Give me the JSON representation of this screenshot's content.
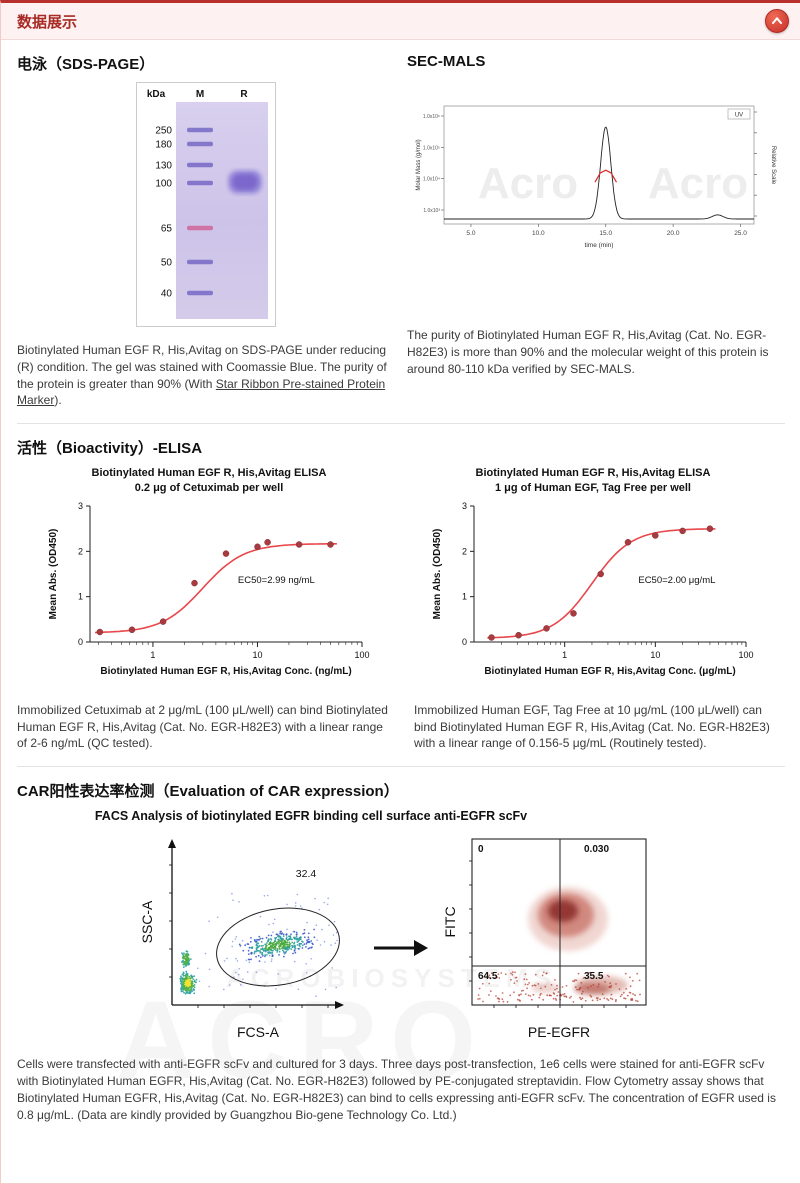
{
  "header": {
    "title": "数据展示"
  },
  "colors": {
    "accent_red": "#c13530",
    "header_bg": "#fdf1f1",
    "gel_purple": "#cdc3e9",
    "curve_red": "#e8474b"
  },
  "sections": {
    "sds_page": {
      "title": "电泳（SDS-PAGE）",
      "gel": {
        "header": {
          "kda": "kDa",
          "lane_m": "M",
          "lane_r": "R"
        },
        "marker_labels": [
          "250",
          "180",
          "130",
          "100",
          "65",
          "50",
          "40"
        ]
      },
      "caption_parts": {
        "before": "Biotinylated Human EGF R, His,Avitag on SDS-PAGE under reducing (R) condition. The gel was stained with Coomassie Blue. The purity of the protein is greater than 90% (With ",
        "underlined": "Star Ribbon Pre-stained Protein Marker",
        "after": ")."
      }
    },
    "sec_mals": {
      "title": "SEC-MALS",
      "caption": "The purity of Biotinylated Human EGF R, His,Avitag (Cat. No. EGR-H82E3) is more than 90% and the molecular weight of this protein is around 80-110 kDa verified by SEC-MALS."
    },
    "elisa": {
      "title": "活性（Bioactivity）-ELISA",
      "captions": [
        "Immobilized Cetuximab at 2 μg/mL (100 μL/well) can bind Biotinylated Human EGF R, His,Avitag (Cat. No. EGR-H82E3) with a linear range of 2-6 ng/mL (QC tested).",
        "Immobilized Human EGF, Tag Free at 10 μg/mL (100 μL/well) can bind Biotinylated Human EGF R, His,Avitag (Cat. No. EGR-H82E3) with a linear range of 0.156-5 μg/mL (Routinely tested)."
      ]
    },
    "car": {
      "title": "CAR阳性表达率检测（Evaluation of CAR expression）",
      "subtitle": "FACS Analysis of biotinylated EGFR binding cell surface anti-EGFR scFv",
      "caption": "Cells were transfected with anti-EGFR scFv and cultured for 3 days. Three days post-transfection, 1e6 cells were stained for anti-EGFR scFv with Biotinylated Human EGFR, His,Avitag (Cat. No. EGR-H82E3) followed by PE-conjugated streptavidin. Flow Cytometry assay shows that Biotinylated Human EGFR, His,Avitag (Cat. No. EGR-H82E3) can bind to cells expressing anti-EGFR scFv. The concentration of EGFR used is 0.8 μg/mL. (Data are kindly provided by Guangzhou Bio-gene Technology Co. Ltd.)"
    }
  },
  "watermark": {
    "facs_small": "ACROBIOSYSTEMS",
    "facs_big": "ACRO"
  },
  "chart_data": [
    {
      "id": "sec_mals_trace",
      "type": "line",
      "xlabel": "time (min)",
      "ylabel_left": "Molar Mass (g/mol)",
      "ylabel_right": "Relative Scale",
      "xlim": [
        3.0,
        26.0
      ],
      "x_ticks": [
        "5.0",
        "10.0",
        "15.0",
        "20.0",
        "25.0"
      ],
      "y_ticks_left": [
        "1.0x10⁶",
        "1.0x10⁵",
        "1.0x10⁴",
        "1.0x10³"
      ],
      "legend": [
        "UV"
      ],
      "peak_time_min": 15.0,
      "peaks": [
        {
          "center": 15.0,
          "sigma": 0.38,
          "amp": 1.0
        },
        {
          "center": 23.3,
          "sigma": 0.4,
          "amp": 0.045
        }
      ],
      "molar_mass_trace": [
        [
          14.2,
          0.4
        ],
        [
          14.6,
          0.5
        ],
        [
          15.0,
          0.53
        ],
        [
          15.4,
          0.5
        ],
        [
          15.8,
          0.4
        ]
      ],
      "watermark": "Acro"
    },
    {
      "id": "elisa_cetuximab",
      "type": "scatter_line",
      "title": "Biotinylated Human EGF R, His,Avitag ELISA",
      "subtitle": "0.2 μg of Cetuximab per well",
      "xlabel": "Biotinylated Human EGF R, His,Avitag Conc. (ng/mL)",
      "ylabel": "Mean Abs. (OD450)",
      "ec50_label": "EC50=2.99 ng/mL",
      "xscale": "log",
      "xlim": [
        0.25,
        100
      ],
      "ylim": [
        0,
        3
      ],
      "yticks": [
        0,
        1,
        2,
        3
      ],
      "xticks": [
        1,
        10,
        100
      ],
      "points": [
        [
          0.31,
          0.22
        ],
        [
          0.63,
          0.27
        ],
        [
          1.25,
          0.45
        ],
        [
          2.5,
          1.3
        ],
        [
          5,
          1.95
        ],
        [
          10,
          2.1
        ],
        [
          12.5,
          2.2
        ],
        [
          25,
          2.15
        ],
        [
          50,
          2.15
        ]
      ],
      "fit": {
        "bottom": 0.2,
        "top": 2.17,
        "ec50": 2.99,
        "hill": 2.2
      }
    },
    {
      "id": "elisa_human_egf",
      "type": "scatter_line",
      "title": "Biotinylated Human EGF R, His,Avitag ELISA",
      "subtitle": "1 μg of Human EGF, Tag Free per well",
      "xlabel": "Biotinylated Human EGF R, His,Avitag Conc. (μg/mL)",
      "ylabel": "Mean Abs. (OD450)",
      "ec50_label": "EC50=2.00 μg/mL",
      "xscale": "log",
      "xlim": [
        0.1,
        100
      ],
      "ylim": [
        0,
        3
      ],
      "yticks": [
        0,
        1,
        2,
        3
      ],
      "xticks": [
        1,
        10,
        100
      ],
      "points": [
        [
          0.156,
          0.1
        ],
        [
          0.31,
          0.15
        ],
        [
          0.63,
          0.3
        ],
        [
          1.25,
          0.63
        ],
        [
          2.5,
          1.5
        ],
        [
          5,
          2.2
        ],
        [
          10,
          2.35
        ],
        [
          20,
          2.45
        ],
        [
          40,
          2.5
        ]
      ],
      "fit": {
        "bottom": 0.08,
        "top": 2.5,
        "ec50": 2.0,
        "hill": 2.0
      }
    },
    {
      "id": "facs_gate",
      "type": "scatter",
      "xlabel": "FCS-A",
      "ylabel": "SSC-A",
      "gate": {
        "shape": "ellipse",
        "label": "32.4"
      }
    },
    {
      "id": "facs_quadrant",
      "type": "density",
      "xlabel": "PE-EGFR",
      "ylabel": "FITC",
      "quadrant_values": {
        "upper_left": "0",
        "upper_right": "0.030",
        "lower_left": "64.5",
        "lower_right": "35.5"
      }
    }
  ]
}
